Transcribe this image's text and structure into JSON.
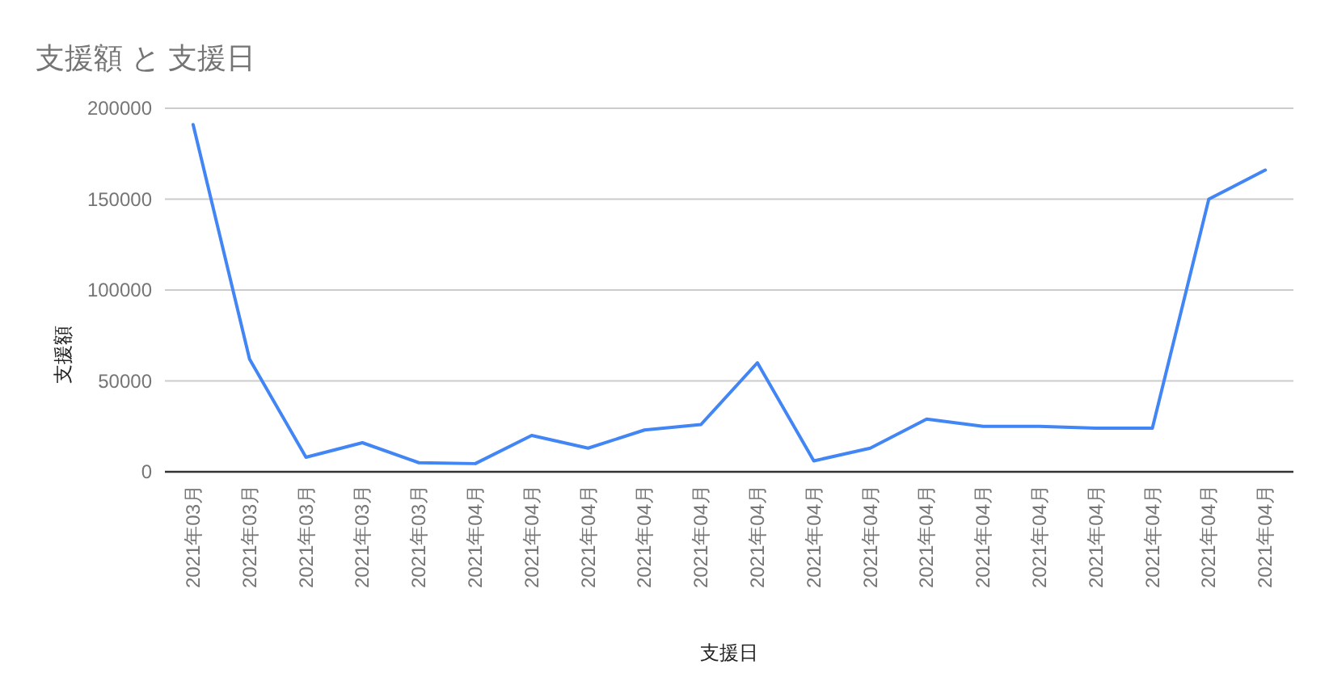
{
  "chart_data": {
    "type": "line",
    "title": "支援額 と 支援日",
    "xlabel": "支援日",
    "ylabel": "支援額",
    "categories": [
      "2021年03月",
      "2021年03月",
      "2021年03月",
      "2021年03月",
      "2021年03月",
      "2021年04月",
      "2021年04月",
      "2021年04月",
      "2021年04月",
      "2021年04月",
      "2021年04月",
      "2021年04月",
      "2021年04月",
      "2021年04月",
      "2021年04月",
      "2021年04月",
      "2021年04月",
      "2021年04月",
      "2021年04月",
      "2021年04月"
    ],
    "series": [
      {
        "color": "#4285f4",
        "values": [
          191000,
          62000,
          8000,
          16000,
          5000,
          4500,
          20000,
          13000,
          23000,
          26000,
          60000,
          6000,
          13000,
          29000,
          25000,
          25000,
          24000,
          24000,
          150000,
          166000
        ]
      }
    ],
    "ylim": [
      0,
      200000
    ],
    "yticks": [
      0,
      50000,
      100000,
      150000,
      200000
    ],
    "grid": "y"
  }
}
